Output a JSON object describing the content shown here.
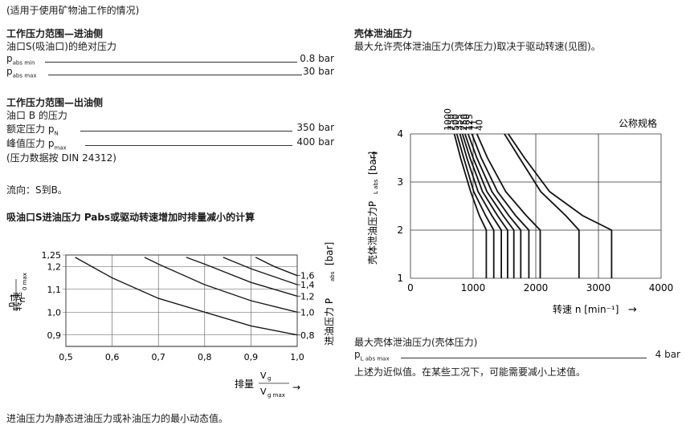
{
  "left": {
    "note": "(适用于使用矿物油工作的情况)",
    "inlet_title": "工作压力范围—进油侧",
    "inlet_sub": "油口S(吸油口)的绝对压力",
    "p_abs_min": {
      "p": "p",
      "sub": "abs min",
      "value": "0.8 bar"
    },
    "p_abs_max": {
      "p": "p",
      "sub": "abs max",
      "value": "30 bar"
    },
    "outlet_title": "工作压力范围—出油侧",
    "outlet_sub": "油口 B 的压力",
    "rated": {
      "label": "额定压力 p",
      "sub": "N",
      "value": "350 bar"
    },
    "peak": {
      "label": "峰值压力 p",
      "sub": "max",
      "value": "400 bar"
    },
    "data_note": "(压力数据按 DIN 24312)",
    "flow": "流向：S到B。",
    "calc_title": "吸油口S进油压力 Pabs或驱动转速增加时排量减小的计算",
    "footer": "进油压力为静态进油压力或补油压力的最小动态值。"
  },
  "right": {
    "title": "壳体泄油压力",
    "desc": "最大允许壳体泄油压力(壳体压力)取决于驱动转速(见图)。",
    "max_title": "最大壳体泄油压力(壳体压力)",
    "max_line": {
      "p": "p",
      "sub": "L abs max",
      "value": "4 bar"
    },
    "approx": "上述为近似值。在某些工况下，可能需要减小上述值。"
  },
  "chart_data": [
    {
      "type": "line",
      "title": "",
      "xlabel": "排量",
      "x_fraction": {
        "num": "V",
        "num_sub": "g",
        "den": "V",
        "den_sub": "g max"
      },
      "ylabel": "转速",
      "y_fraction": {
        "num": "n",
        "den": "n",
        "den_sub": "0 max"
      },
      "y2label": "进油压力 P",
      "y2label_sub": "abs",
      "y2unit": "[bar]",
      "xlim": [
        0.5,
        1.0
      ],
      "ylim": [
        0.85,
        1.25
      ],
      "x_ticks": [
        "0,5",
        "0,6",
        "0,7",
        "0,8",
        "0,9",
        "1,0"
      ],
      "y_ticks": [
        "0,9",
        "1,0",
        "1,1",
        "1,2",
        "1,25"
      ],
      "y_tick_values": [
        0.9,
        1.0,
        1.1,
        1.2,
        1.25
      ],
      "y2_ticks": [
        "0,8",
        "1,0",
        "1,2",
        "1,4",
        "1,6"
      ],
      "series": [
        {
          "name": "0,8",
          "x": [
            0.52,
            0.6,
            0.7,
            0.8,
            0.9,
            1.0
          ],
          "y": [
            1.24,
            1.15,
            1.06,
            1.0,
            0.94,
            0.9
          ]
        },
        {
          "name": "1,0",
          "x": [
            0.67,
            0.7,
            0.8,
            0.9,
            1.0
          ],
          "y": [
            1.24,
            1.21,
            1.12,
            1.05,
            1.0
          ]
        },
        {
          "name": "1,2",
          "x": [
            0.76,
            0.8,
            0.9,
            1.0
          ],
          "y": [
            1.24,
            1.21,
            1.13,
            1.07
          ]
        },
        {
          "name": "1,4",
          "x": [
            0.84,
            0.9,
            1.0
          ],
          "y": [
            1.24,
            1.19,
            1.12
          ]
        },
        {
          "name": "1,6",
          "x": [
            0.91,
            0.95,
            1.0
          ],
          "y": [
            1.24,
            1.2,
            1.16
          ]
        }
      ]
    },
    {
      "type": "line",
      "title": "",
      "xlabel": "转速 n [min⁻¹]",
      "ylabel": "壳体泄油压力P",
      "ylabel_sub": "L abs",
      "yunit": "[bar]",
      "legend_title": "公称规格",
      "xlim": [
        0,
        4000
      ],
      "ylim": [
        1,
        4
      ],
      "x_ticks": [
        "0",
        "1000",
        "2000",
        "3000",
        "4000"
      ],
      "y_ticks": [
        "1",
        "2",
        "3",
        "4"
      ],
      "series": [
        {
          "name": "1000",
          "x": [
            700,
            800,
            960,
            1100,
            1210,
            1210
          ],
          "y": [
            4,
            3.5,
            2.8,
            2.3,
            2.0,
            1.0
          ]
        },
        {
          "name": "750",
          "x": [
            740,
            850,
            1010,
            1200,
            1330,
            1330
          ],
          "y": [
            4,
            3.5,
            2.8,
            2.3,
            2.0,
            1.0
          ]
        },
        {
          "name": "500",
          "x": [
            790,
            900,
            1080,
            1300,
            1450,
            1450
          ],
          "y": [
            4,
            3.5,
            2.8,
            2.3,
            2.0,
            1.0
          ]
        },
        {
          "name": "355",
          "x": [
            830,
            950,
            1150,
            1390,
            1550,
            1550
          ],
          "y": [
            4,
            3.5,
            2.8,
            2.3,
            2.0,
            1.0
          ]
        },
        {
          "name": "250",
          "x": [
            870,
            1000,
            1220,
            1480,
            1650,
            1650
          ],
          "y": [
            4,
            3.5,
            2.8,
            2.3,
            2.0,
            1.0
          ]
        },
        {
          "name": "180",
          "x": [
            920,
            1060,
            1300,
            1570,
            1760,
            1760
          ],
          "y": [
            4,
            3.5,
            2.8,
            2.3,
            2.0,
            1.0
          ]
        },
        {
          "name": "125",
          "x": [
            980,
            1130,
            1390,
            1680,
            1890,
            1890
          ],
          "y": [
            4,
            3.5,
            2.8,
            2.3,
            2.0,
            1.0
          ]
        },
        {
          "name": "71",
          "x": [
            1060,
            1230,
            1520,
            1850,
            2070,
            2070
          ],
          "y": [
            4,
            3.5,
            2.8,
            2.3,
            2.0,
            1.0
          ]
        },
        {
          "name": "40",
          "x": [
            1500,
            1740,
            2080,
            2480,
            2690,
            2690
          ],
          "y": [
            4,
            3.5,
            2.8,
            2.3,
            2.0,
            1.0
          ]
        },
        {
          "name": "",
          "x": [
            1560,
            1820,
            2220,
            2750,
            3210,
            3210
          ],
          "y": [
            4,
            3.5,
            2.8,
            2.3,
            2.0,
            1.0
          ]
        }
      ],
      "label_x": [
        640,
        700,
        760,
        830,
        900,
        940,
        990,
        1060,
        1150,
        1350
      ]
    }
  ]
}
